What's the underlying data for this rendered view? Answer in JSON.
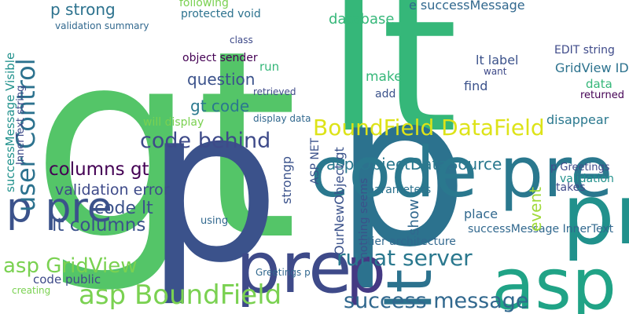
{
  "words": [
    "gt",
    "lt",
    "p",
    "p",
    "pre code",
    "code pre",
    "pre",
    "asp",
    "lt",
    "p",
    "BoundField DataField",
    "asp BoundField",
    "runat server",
    "success message",
    "code behind",
    "p pre",
    "user Control",
    "asp GridView",
    "columns gt",
    "lt columns",
    "validation error",
    "code lt",
    "asp ObjectDataSource",
    "question",
    "gt code",
    "p strong",
    "code public",
    "database",
    "e successMessage",
    "protected void",
    "following",
    "validation summary",
    "object sender",
    "will display",
    "display data",
    "retrieved",
    "successMessage InnerText",
    "OurNewObject gt",
    "parameters",
    "tier architecture",
    "event",
    "GridView ID",
    "EDIT string",
    "disappear",
    "lt label",
    "make",
    "find",
    "add",
    "data",
    "returned",
    "show",
    "place",
    "nothing seems",
    "ASP NET",
    "strongp",
    "p Greetings",
    "Greetings p",
    "creating",
    "InnerText string",
    "successMessage Visible",
    "using",
    "run",
    "class",
    "want",
    "takes",
    "validation"
  ]
}
